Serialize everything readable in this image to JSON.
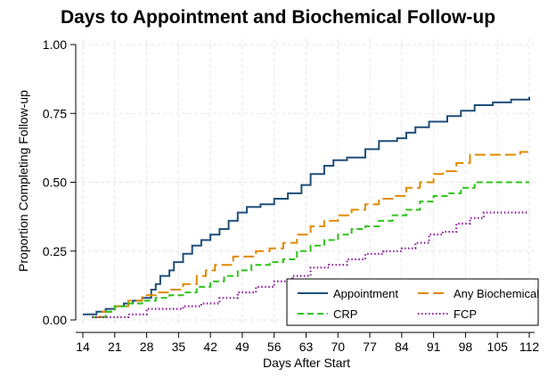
{
  "chart_data": {
    "type": "line",
    "title": "Days to Appointment and Biochemical Follow-up",
    "xlabel": "Days After Start",
    "ylabel": "Proportion Completing Follow-up",
    "xlim": [
      14,
      112
    ],
    "ylim": [
      0,
      1
    ],
    "xticks": [
      14,
      21,
      28,
      35,
      42,
      49,
      56,
      63,
      70,
      77,
      84,
      91,
      98,
      105,
      112
    ],
    "yticks": [
      0,
      0.25,
      0.5,
      0.75,
      1.0
    ],
    "ytick_labels": [
      "0.00",
      "0.25",
      "0.50",
      "0.75",
      "1.00"
    ],
    "grid": true,
    "legend_position": "bottom-right",
    "series": [
      {
        "name": "Appointment",
        "color": "#1f4e79",
        "dash": "solid",
        "points": [
          [
            14,
            0.02
          ],
          [
            16,
            0.02
          ],
          [
            17,
            0.03
          ],
          [
            19,
            0.04
          ],
          [
            21,
            0.05
          ],
          [
            23,
            0.06
          ],
          [
            25,
            0.07
          ],
          [
            27,
            0.08
          ],
          [
            29,
            0.11
          ],
          [
            30,
            0.13
          ],
          [
            31,
            0.16
          ],
          [
            33,
            0.18
          ],
          [
            34,
            0.21
          ],
          [
            36,
            0.24
          ],
          [
            38,
            0.27
          ],
          [
            40,
            0.29
          ],
          [
            42,
            0.31
          ],
          [
            44,
            0.33
          ],
          [
            46,
            0.36
          ],
          [
            48,
            0.39
          ],
          [
            50,
            0.41
          ],
          [
            53,
            0.42
          ],
          [
            56,
            0.44
          ],
          [
            59,
            0.46
          ],
          [
            62,
            0.49
          ],
          [
            64,
            0.53
          ],
          [
            67,
            0.56
          ],
          [
            69,
            0.58
          ],
          [
            72,
            0.59
          ],
          [
            76,
            0.62
          ],
          [
            79,
            0.65
          ],
          [
            83,
            0.66
          ],
          [
            85,
            0.68
          ],
          [
            87,
            0.7
          ],
          [
            90,
            0.72
          ],
          [
            94,
            0.74
          ],
          [
            97,
            0.76
          ],
          [
            100,
            0.78
          ],
          [
            104,
            0.79
          ],
          [
            108,
            0.8
          ],
          [
            110,
            0.8
          ],
          [
            112,
            0.81
          ]
        ]
      },
      {
        "name": "Any Biochemical",
        "color": "#e08a00",
        "dash": "long-dash",
        "points": [
          [
            16,
            0.01
          ],
          [
            18,
            0.03
          ],
          [
            21,
            0.05
          ],
          [
            24,
            0.07
          ],
          [
            27,
            0.09
          ],
          [
            30,
            0.1
          ],
          [
            33,
            0.11
          ],
          [
            36,
            0.13
          ],
          [
            39,
            0.16
          ],
          [
            41,
            0.18
          ],
          [
            43,
            0.2
          ],
          [
            47,
            0.23
          ],
          [
            52,
            0.25
          ],
          [
            55,
            0.26
          ],
          [
            58,
            0.28
          ],
          [
            61,
            0.31
          ],
          [
            64,
            0.34
          ],
          [
            67,
            0.36
          ],
          [
            70,
            0.38
          ],
          [
            73,
            0.4
          ],
          [
            76,
            0.42
          ],
          [
            79,
            0.44
          ],
          [
            82,
            0.45
          ],
          [
            85,
            0.48
          ],
          [
            88,
            0.5
          ],
          [
            91,
            0.53
          ],
          [
            93,
            0.54
          ],
          [
            96,
            0.57
          ],
          [
            99,
            0.6
          ],
          [
            103,
            0.6
          ],
          [
            107,
            0.6
          ],
          [
            110,
            0.61
          ],
          [
            112,
            0.62
          ]
        ]
      },
      {
        "name": "CRP",
        "color": "#2ec21a",
        "dash": "dash",
        "points": [
          [
            16,
            0.01
          ],
          [
            19,
            0.03
          ],
          [
            21,
            0.05
          ],
          [
            24,
            0.06
          ],
          [
            27,
            0.07
          ],
          [
            30,
            0.08
          ],
          [
            33,
            0.09
          ],
          [
            36,
            0.1
          ],
          [
            39,
            0.12
          ],
          [
            42,
            0.14
          ],
          [
            45,
            0.16
          ],
          [
            48,
            0.18
          ],
          [
            51,
            0.2
          ],
          [
            55,
            0.21
          ],
          [
            58,
            0.22
          ],
          [
            61,
            0.25
          ],
          [
            64,
            0.27
          ],
          [
            67,
            0.29
          ],
          [
            70,
            0.31
          ],
          [
            73,
            0.33
          ],
          [
            76,
            0.34
          ],
          [
            79,
            0.36
          ],
          [
            82,
            0.38
          ],
          [
            85,
            0.4
          ],
          [
            88,
            0.43
          ],
          [
            91,
            0.45
          ],
          [
            94,
            0.46
          ],
          [
            97,
            0.48
          ],
          [
            100,
            0.5
          ],
          [
            104,
            0.5
          ],
          [
            108,
            0.5
          ],
          [
            112,
            0.5
          ]
        ]
      },
      {
        "name": "FCP",
        "color": "#8b1a9a",
        "dash": "dot",
        "points": [
          [
            16,
            0.01
          ],
          [
            20,
            0.01
          ],
          [
            24,
            0.02
          ],
          [
            28,
            0.04
          ],
          [
            32,
            0.04
          ],
          [
            36,
            0.05
          ],
          [
            40,
            0.06
          ],
          [
            44,
            0.08
          ],
          [
            48,
            0.1
          ],
          [
            52,
            0.12
          ],
          [
            56,
            0.14
          ],
          [
            60,
            0.16
          ],
          [
            64,
            0.19
          ],
          [
            68,
            0.2
          ],
          [
            72,
            0.22
          ],
          [
            76,
            0.24
          ],
          [
            80,
            0.25
          ],
          [
            84,
            0.26
          ],
          [
            87,
            0.28
          ],
          [
            90,
            0.31
          ],
          [
            93,
            0.32
          ],
          [
            96,
            0.35
          ],
          [
            99,
            0.37
          ],
          [
            102,
            0.39
          ],
          [
            106,
            0.39
          ],
          [
            112,
            0.39
          ]
        ]
      }
    ]
  }
}
